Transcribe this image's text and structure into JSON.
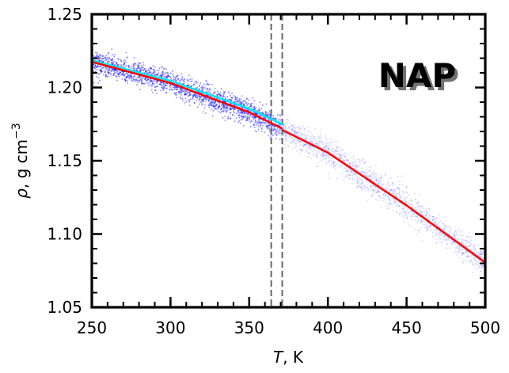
{
  "chart_data": {
    "type": "scatter",
    "title": "",
    "annotation": "NAP",
    "xlabel": {
      "symbol": "T",
      "unit": ", K"
    },
    "ylabel": {
      "symbol": "ρ",
      "unit": ", g cm",
      "superscript": "−3"
    },
    "xlim": [
      250,
      500
    ],
    "ylim": [
      1.05,
      1.25
    ],
    "xticks": [
      250,
      300,
      350,
      400,
      450,
      500
    ],
    "xtick_labels": [
      "250",
      "300",
      "350",
      "400",
      "450",
      "500"
    ],
    "yticks": [
      1.05,
      1.1,
      1.15,
      1.2,
      1.25
    ],
    "ytick_labels": [
      "1.05",
      "1.10",
      "1.15",
      "1.20",
      "1.25"
    ],
    "x_minor_step": 10,
    "y_minor_step": 0.01,
    "grid": false,
    "legend": "none",
    "vlines": [
      {
        "x": 364,
        "style": "dashed",
        "color": "#666666"
      },
      {
        "x": 371,
        "style": "dashed",
        "color": "#666666"
      }
    ],
    "scatter_clouds": [
      {
        "x_range": [
          250,
          370
        ],
        "center_curve": "fit_low",
        "spread": 0.004,
        "color": "#0000ff",
        "opacity": 0.45,
        "count": 1800
      },
      {
        "x_range": [
          370,
          500
        ],
        "center_curve": "fit_high",
        "spread": 0.005,
        "color": "#0000ff",
        "opacity": 0.16,
        "count": 1500
      }
    ],
    "series": [
      {
        "color": "#00e5ee",
        "x": [
          250,
          300,
          350,
          372
        ],
        "y": [
          1.2185,
          1.2045,
          1.1855,
          1.1745
        ]
      },
      {
        "color": "#ff0000",
        "x": [
          250,
          300,
          350,
          371
        ],
        "y": [
          1.2175,
          1.203,
          1.183,
          1.172
        ]
      },
      {
        "color": "#ff0000",
        "x": [
          371,
          400,
          450,
          500
        ],
        "y": [
          1.171,
          1.1555,
          1.1195,
          1.0805
        ]
      }
    ]
  }
}
